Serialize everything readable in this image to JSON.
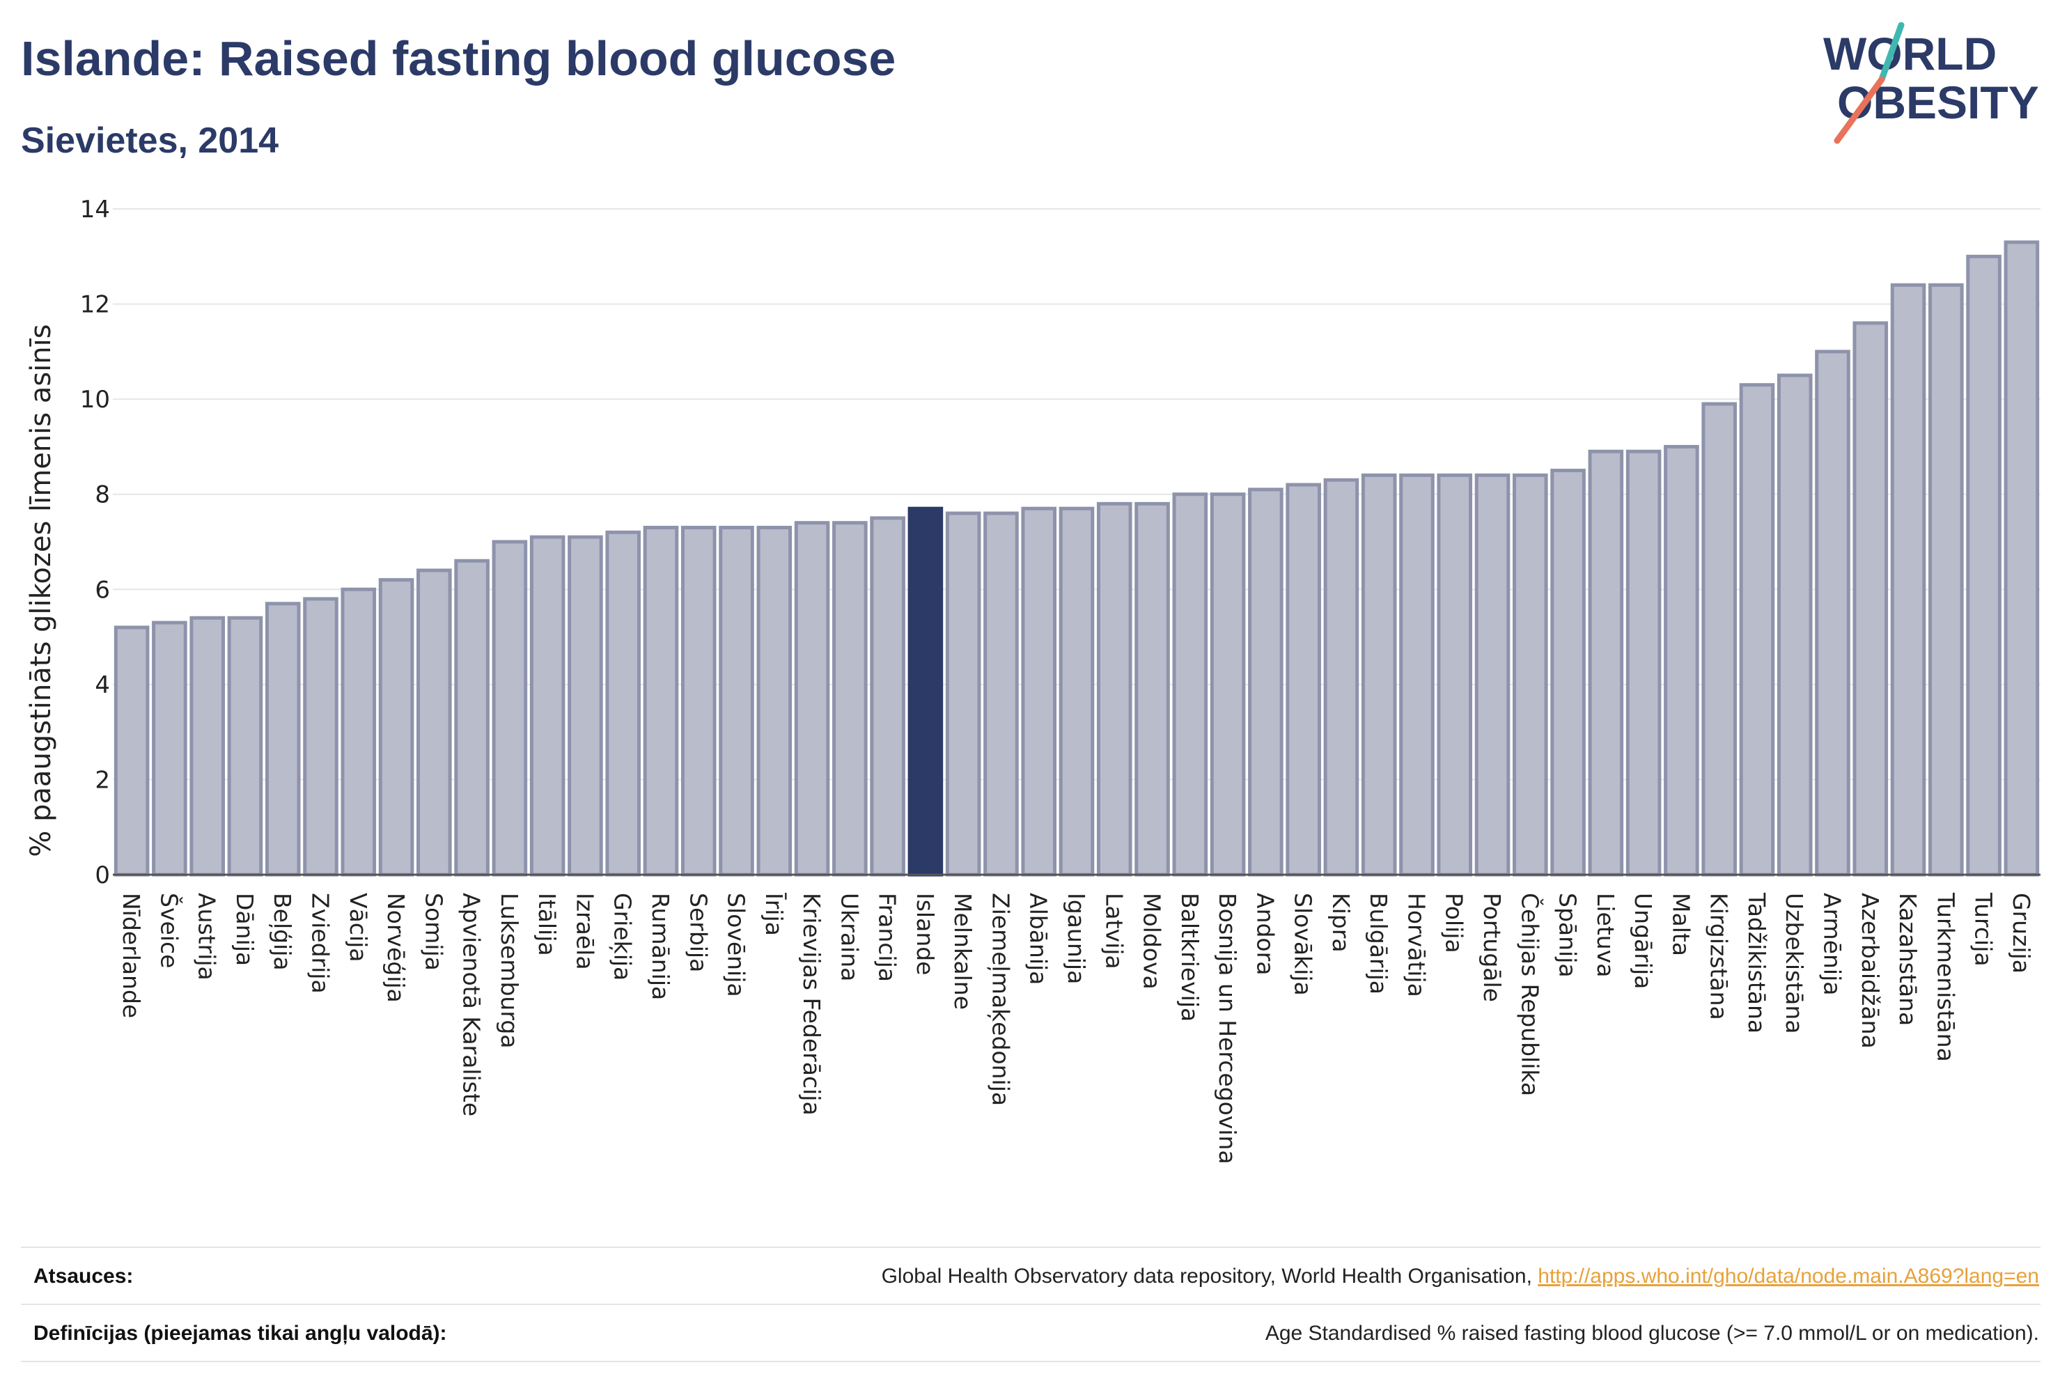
{
  "header": {
    "title": "Islande: Raised fasting blood glucose",
    "subtitle": "Sievietes, 2014"
  },
  "logo": {
    "line1": "WORLD",
    "line2": "OBESITY",
    "icon": "world-obesity-logo",
    "colors": {
      "text": "#2b3a67",
      "slash_teal": "#3fb8b0",
      "slash_coral": "#e8735a"
    }
  },
  "chart_data": {
    "type": "bar",
    "ylabel": "% paaugstināts glikozes līmenis asinīs",
    "xlabel": "",
    "ylim": [
      0,
      14
    ],
    "yticks": [
      0,
      2,
      4,
      6,
      8,
      10,
      12,
      14
    ],
    "grid": true,
    "highlight": "Islande",
    "colors": {
      "bar": "#b9bccb",
      "bar_edge": "#8e93ab",
      "highlight": "#2b3a67"
    },
    "categories": [
      "Nīderlande",
      "Šveice",
      "Austrija",
      "Dānija",
      "Beļģija",
      "Zviedrija",
      "Vācija",
      "Norvēģija",
      "Somija",
      "Apvienotā Karaliste",
      "Luksemburga",
      "Itālija",
      "Izraēla",
      "Grieķija",
      "Rumānija",
      "Serbija",
      "Slovēnija",
      "Īrija",
      "Krievijas Federācija",
      "Ukraina",
      "Francija",
      "Islande",
      "Melnkalne",
      "Ziemeļmaķedonija",
      "Albānija",
      "Igaunija",
      "Latvija",
      "Moldova",
      "Baltkrievija",
      "Bosnija un Hercegovina",
      "Andora",
      "Slovākija",
      "Kipra",
      "Bulgārija",
      "Horvātija",
      "Polija",
      "Portugāle",
      "Čehijas Republika",
      "Spānija",
      "Lietuva",
      "Ungārija",
      "Malta",
      "Kirgizstāna",
      "Tadžikistāna",
      "Uzbekistāna",
      "Armēnija",
      "Azerbaidžāna",
      "Kazahstāna",
      "Turkmenistāna",
      "Turcija",
      "Gruzija"
    ],
    "values": [
      5.2,
      5.3,
      5.4,
      5.4,
      5.7,
      5.8,
      6.0,
      6.2,
      6.4,
      6.6,
      7.0,
      7.1,
      7.1,
      7.2,
      7.3,
      7.3,
      7.3,
      7.3,
      7.4,
      7.4,
      7.5,
      7.7,
      7.6,
      7.6,
      7.7,
      7.7,
      7.8,
      7.8,
      8.0,
      8.0,
      8.1,
      8.2,
      8.3,
      8.4,
      8.4,
      8.4,
      8.4,
      8.4,
      8.5,
      8.9,
      8.9,
      9.0,
      9.9,
      10.3,
      10.5,
      11.0,
      11.6,
      12.4,
      12.4,
      13.0,
      13.3
    ]
  },
  "footer": {
    "sources_label": "Atsauces:",
    "sources_text": "Global Health Observatory data repository, World Health Organisation, ",
    "sources_link": "http://apps.who.int/gho/data/node.main.A869?lang=en",
    "definitions_label": "Definīcijas (pieejamas tikai angļu valodā):",
    "definitions_text": "Age Standardised % raised fasting blood glucose (>= 7.0 mmol/L or on medication)."
  }
}
